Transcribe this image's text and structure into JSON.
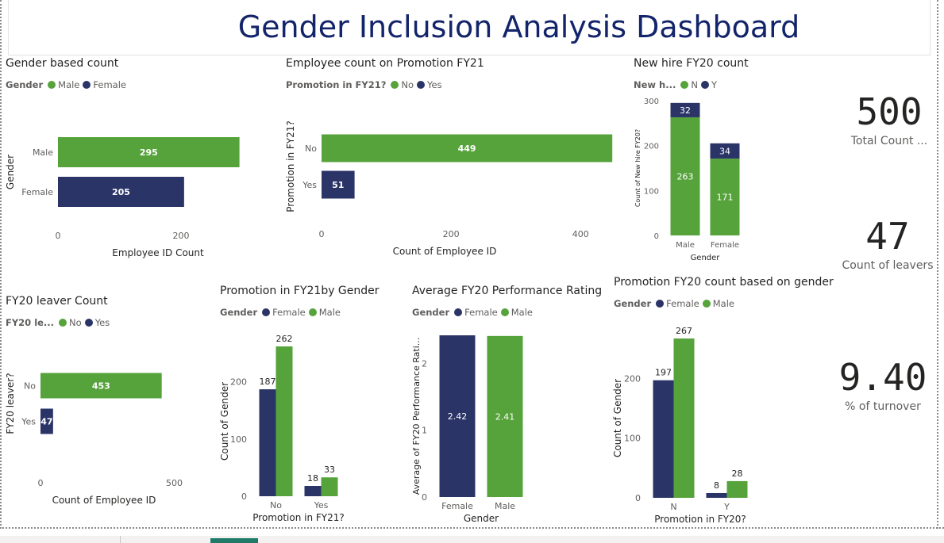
{
  "dashboard": {
    "title": "Gender Inclusion Analysis Dashboard"
  },
  "colors": {
    "green": "#56a33b",
    "navy": "#2b3467",
    "axis_text": "#605e5c",
    "label_light": "#ffffff",
    "label_dark": "#252423"
  },
  "cards": {
    "total": {
      "value": "500",
      "label": "Total Count ..."
    },
    "leavers": {
      "value": "47",
      "label": "Count of leavers"
    },
    "turnover": {
      "value": "9.40",
      "label": "% of turnover"
    }
  },
  "chart_data": [
    {
      "id": "gender_count",
      "type": "bar",
      "orientation": "horizontal",
      "title": "Gender based count",
      "legend_title": "Gender",
      "legend": [
        {
          "name": "Male",
          "color": "#56a33b"
        },
        {
          "name": "Female",
          "color": "#2b3467"
        }
      ],
      "categories": [
        "Male",
        "Female"
      ],
      "values": [
        295,
        205
      ],
      "bar_colors": [
        "#56a33b",
        "#2b3467"
      ],
      "xlabel": "Employee ID Count",
      "ylabel": "Gender",
      "xlim": [
        0,
        320
      ],
      "xticks": [
        0,
        200
      ],
      "grid": false
    },
    {
      "id": "promotion_fy21",
      "type": "bar",
      "orientation": "horizontal",
      "title": "Employee count on Promotion FY21",
      "legend_title": "Promotion in FY21?",
      "legend": [
        {
          "name": "No",
          "color": "#56a33b"
        },
        {
          "name": "Yes",
          "color": "#2b3467"
        }
      ],
      "categories": [
        "No",
        "Yes"
      ],
      "values": [
        449,
        51
      ],
      "bar_colors": [
        "#56a33b",
        "#2b3467"
      ],
      "xlabel": "Count of Employee ID",
      "ylabel": "Promotion in FY21?",
      "xlim": [
        0,
        450
      ],
      "xticks": [
        0,
        200,
        400
      ],
      "grid": false
    },
    {
      "id": "new_hire_fy20",
      "type": "bar",
      "orientation": "vertical",
      "stacked": true,
      "title": "New hire FY20 count",
      "legend_title": "New h...",
      "legend": [
        {
          "name": "N",
          "color": "#56a33b"
        },
        {
          "name": "Y",
          "color": "#2b3467"
        }
      ],
      "categories": [
        "Male",
        "Female"
      ],
      "series": [
        {
          "name": "N",
          "color": "#56a33b",
          "values": [
            263,
            171
          ]
        },
        {
          "name": "Y",
          "color": "#2b3467",
          "values": [
            32,
            34
          ]
        }
      ],
      "xlabel": "Gender",
      "ylabel": "Count of New hire FY20?",
      "ylim": [
        0,
        300
      ],
      "yticks": [
        0,
        100,
        200,
        300
      ],
      "grid": false
    },
    {
      "id": "fy20_leaver",
      "type": "bar",
      "orientation": "horizontal",
      "title": "FY20 leaver Count",
      "legend_title": "FY20 le...",
      "legend": [
        {
          "name": "No",
          "color": "#56a33b"
        },
        {
          "name": "Yes",
          "color": "#2b3467"
        }
      ],
      "categories": [
        "No",
        "Yes"
      ],
      "values": [
        453,
        47
      ],
      "bar_colors": [
        "#56a33b",
        "#2b3467"
      ],
      "xlabel": "Count of Employee ID",
      "ylabel": "FY20 leaver?",
      "xlim": [
        0,
        540
      ],
      "xticks": [
        0,
        500
      ],
      "grid": false
    },
    {
      "id": "promotion_fy21_gender",
      "type": "bar",
      "orientation": "vertical",
      "grouped": true,
      "title": "Promotion in FY21by Gender",
      "legend_title": "Gender",
      "legend": [
        {
          "name": "Female",
          "color": "#2b3467"
        },
        {
          "name": "Male",
          "color": "#56a33b"
        }
      ],
      "categories": [
        "No",
        "Yes"
      ],
      "series": [
        {
          "name": "Female",
          "color": "#2b3467",
          "values": [
            187,
            18
          ]
        },
        {
          "name": "Male",
          "color": "#56a33b",
          "values": [
            262,
            33
          ]
        }
      ],
      "xlabel": "Promotion in FY21?",
      "ylabel": "Count of Gender",
      "ylim": [
        0,
        262
      ],
      "yticks": [
        0,
        100,
        200
      ],
      "grid": false
    },
    {
      "id": "avg_performance",
      "type": "bar",
      "orientation": "vertical",
      "title": "Average FY20 Performance Rating",
      "legend_title": "Gender",
      "legend": [
        {
          "name": "Female",
          "color": "#2b3467"
        },
        {
          "name": "Male",
          "color": "#56a33b"
        }
      ],
      "categories": [
        "Female",
        "Male"
      ],
      "values": [
        2.42,
        2.41
      ],
      "value_labels": [
        "2.42",
        "2.41"
      ],
      "bar_colors": [
        "#2b3467",
        "#56a33b"
      ],
      "xlabel": "Gender",
      "ylabel": "Average of FY20 Performance Rati...",
      "ylim": [
        0,
        2.42
      ],
      "yticks": [
        0,
        1,
        2
      ],
      "grid": false
    },
    {
      "id": "promotion_fy20_gender",
      "type": "bar",
      "orientation": "vertical",
      "grouped": true,
      "title": "Promotion FY20 count based on gender",
      "legend_title": "Gender",
      "legend": [
        {
          "name": "Female",
          "color": "#2b3467"
        },
        {
          "name": "Male",
          "color": "#56a33b"
        }
      ],
      "categories": [
        "N",
        "Y"
      ],
      "series": [
        {
          "name": "Female",
          "color": "#2b3467",
          "values": [
            197,
            8
          ]
        },
        {
          "name": "Male",
          "color": "#56a33b",
          "values": [
            267,
            28
          ]
        }
      ],
      "xlabel": "Promotion in FY20?",
      "ylabel": "Count of Gender",
      "ylim": [
        0,
        267
      ],
      "yticks": [
        0,
        100,
        200
      ],
      "grid": false
    }
  ]
}
